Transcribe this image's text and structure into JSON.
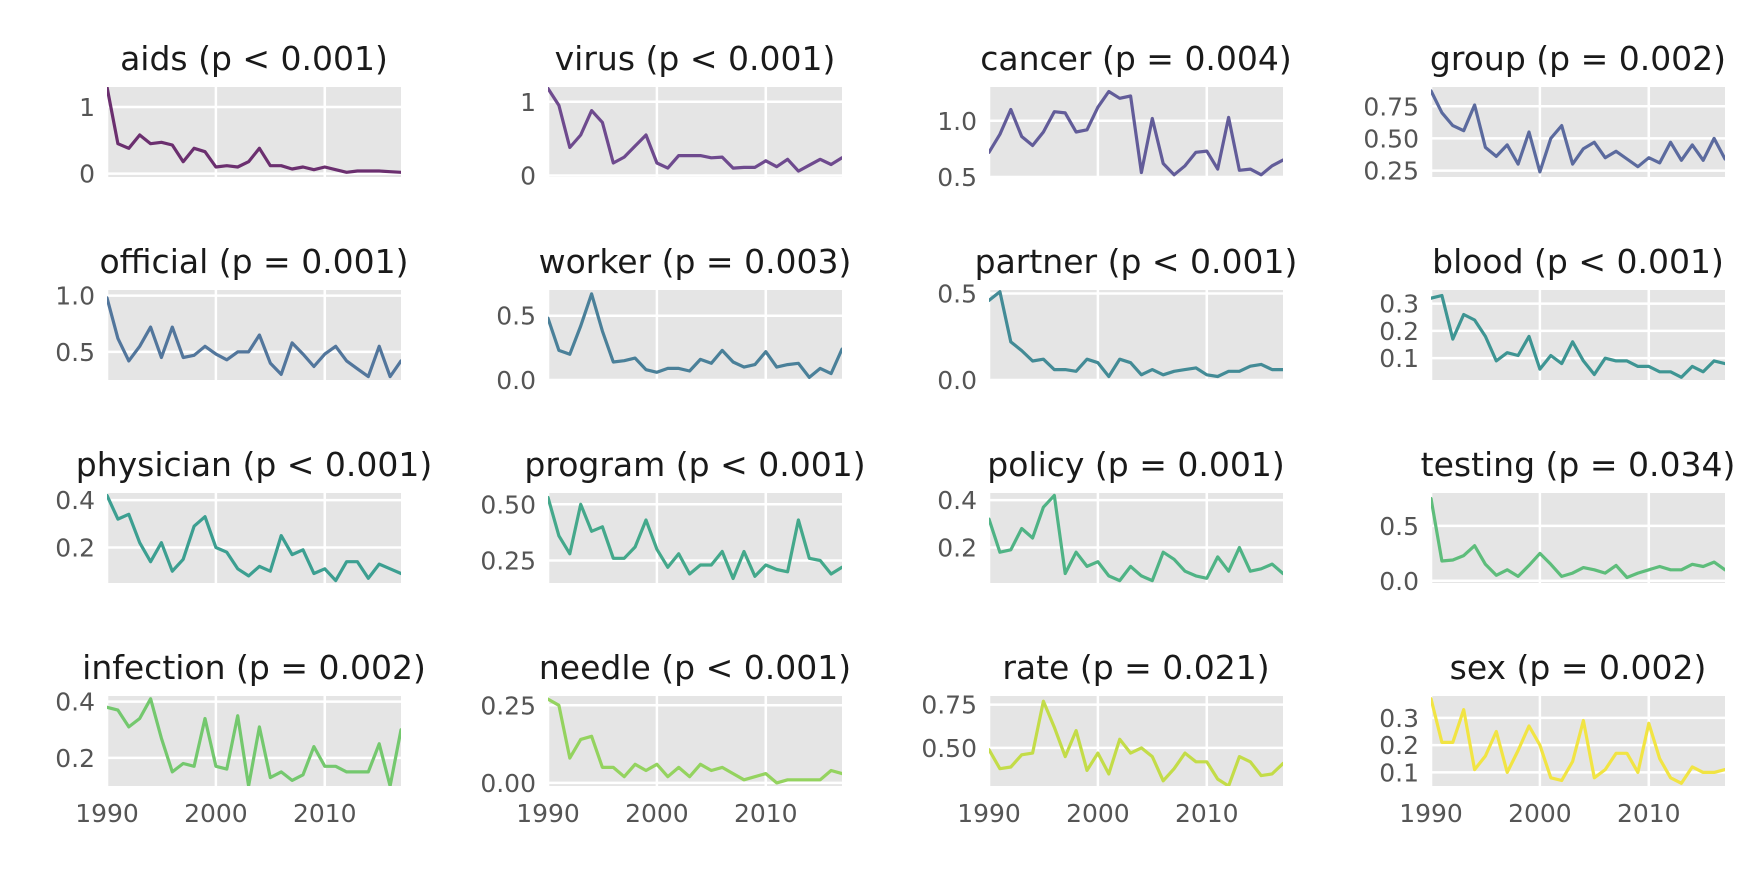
{
  "chart_data": [
    {
      "type": "line",
      "title": "aids (p < 0.001)",
      "color": "#6b2f6f",
      "xlim": [
        1990,
        2017
      ],
      "ylim": [
        -0.05,
        1.3
      ],
      "yticks": [
        0,
        1
      ],
      "yticklabels": [
        "0",
        "1"
      ],
      "grid": true,
      "x": [
        1990,
        1991,
        1992,
        1993,
        1994,
        1995,
        1996,
        1997,
        1998,
        1999,
        2000,
        2001,
        2002,
        2003,
        2004,
        2005,
        2006,
        2007,
        2008,
        2009,
        2010,
        2011,
        2012,
        2013,
        2014,
        2015,
        2016,
        2017
      ],
      "y": [
        1.3,
        0.45,
        0.38,
        0.58,
        0.45,
        0.47,
        0.43,
        0.18,
        0.38,
        0.33,
        0.1,
        0.12,
        0.1,
        0.18,
        0.38,
        0.12,
        0.12,
        0.07,
        0.1,
        0.06,
        0.1,
        0.06,
        0.02,
        0.04,
        0.04,
        0.04,
        0.03,
        0.02
      ]
    },
    {
      "type": "line",
      "title": "virus (p < 0.001)",
      "color": "#6e4a8e",
      "xlim": [
        1990,
        2017
      ],
      "ylim": [
        -0.02,
        1.2
      ],
      "yticks": [
        0,
        1
      ],
      "yticklabels": [
        "0",
        "1"
      ],
      "grid": true,
      "x": [
        1990,
        1991,
        1992,
        1993,
        1994,
        1995,
        1996,
        1997,
        1998,
        1999,
        2000,
        2001,
        2002,
        2003,
        2004,
        2005,
        2006,
        2007,
        2008,
        2009,
        2010,
        2011,
        2012,
        2013,
        2014,
        2015,
        2016,
        2017
      ],
      "y": [
        1.18,
        0.95,
        0.38,
        0.55,
        0.88,
        0.72,
        0.17,
        0.25,
        0.4,
        0.55,
        0.17,
        0.1,
        0.27,
        0.27,
        0.27,
        0.24,
        0.25,
        0.1,
        0.11,
        0.11,
        0.2,
        0.12,
        0.22,
        0.06,
        0.14,
        0.22,
        0.15,
        0.24
      ]
    },
    {
      "type": "line",
      "title": "cancer (p = 0.004)",
      "color": "#625c99",
      "xlim": [
        1990,
        2017
      ],
      "ylim": [
        0.5,
        1.3
      ],
      "yticks": [
        0.5,
        1.0
      ],
      "yticklabels": [
        "0.5",
        "1.0"
      ],
      "grid": true,
      "x": [
        1990,
        1991,
        1992,
        1993,
        1994,
        1995,
        1996,
        1997,
        1998,
        1999,
        2000,
        2001,
        2002,
        2003,
        2004,
        2005,
        2006,
        2007,
        2008,
        2009,
        2010,
        2011,
        2012,
        2013,
        2014,
        2015,
        2016,
        2017
      ],
      "y": [
        0.72,
        0.88,
        1.1,
        0.86,
        0.78,
        0.9,
        1.08,
        1.07,
        0.9,
        0.92,
        1.12,
        1.26,
        1.2,
        1.22,
        0.54,
        1.02,
        0.62,
        0.52,
        0.6,
        0.72,
        0.73,
        0.57,
        1.03,
        0.56,
        0.57,
        0.52,
        0.6,
        0.65
      ]
    },
    {
      "type": "line",
      "title": "group (p = 0.002)",
      "color": "#5b6a9e",
      "xlim": [
        1990,
        2017
      ],
      "ylim": [
        0.2,
        0.9
      ],
      "yticks": [
        0.25,
        0.5,
        0.75
      ],
      "yticklabels": [
        "0.25",
        "0.50",
        "0.75"
      ],
      "grid": true,
      "x": [
        1990,
        1991,
        1992,
        1993,
        1994,
        1995,
        1996,
        1997,
        1998,
        1999,
        2000,
        2001,
        2002,
        2003,
        2004,
        2005,
        2006,
        2007,
        2008,
        2009,
        2010,
        2011,
        2012,
        2013,
        2014,
        2015,
        2016,
        2017
      ],
      "y": [
        0.87,
        0.7,
        0.6,
        0.56,
        0.76,
        0.43,
        0.36,
        0.45,
        0.3,
        0.55,
        0.24,
        0.5,
        0.6,
        0.3,
        0.42,
        0.47,
        0.35,
        0.4,
        0.34,
        0.28,
        0.35,
        0.31,
        0.47,
        0.33,
        0.45,
        0.33,
        0.5,
        0.34
      ]
    },
    {
      "type": "line",
      "title": "official (p = 0.001)",
      "color": "#52769c",
      "xlim": [
        1990,
        2017
      ],
      "ylim": [
        0.25,
        1.05
      ],
      "yticks": [
        0.5,
        1.0
      ],
      "yticklabels": [
        "0.5",
        "1.0"
      ],
      "grid": true,
      "x": [
        1990,
        1991,
        1992,
        1993,
        1994,
        1995,
        1996,
        1997,
        1998,
        1999,
        2000,
        2001,
        2002,
        2003,
        2004,
        2005,
        2006,
        2007,
        2008,
        2009,
        2010,
        2011,
        2012,
        2013,
        2014,
        2015,
        2016,
        2017
      ],
      "y": [
        0.98,
        0.62,
        0.42,
        0.55,
        0.72,
        0.45,
        0.72,
        0.45,
        0.47,
        0.55,
        0.48,
        0.43,
        0.5,
        0.5,
        0.65,
        0.4,
        0.3,
        0.58,
        0.48,
        0.37,
        0.48,
        0.55,
        0.42,
        0.35,
        0.28,
        0.55,
        0.28,
        0.42
      ]
    },
    {
      "type": "line",
      "title": "worker (p = 0.003)",
      "color": "#4a8099",
      "xlim": [
        1990,
        2017
      ],
      "ylim": [
        0,
        0.7
      ],
      "yticks": [
        0,
        0.5
      ],
      "yticklabels": [
        "0.0",
        "0.5"
      ],
      "grid": true,
      "x": [
        1990,
        1991,
        1992,
        1993,
        1994,
        1995,
        1996,
        1997,
        1998,
        1999,
        2000,
        2001,
        2002,
        2003,
        2004,
        2005,
        2006,
        2007,
        2008,
        2009,
        2010,
        2011,
        2012,
        2013,
        2014,
        2015,
        2016,
        2017
      ],
      "y": [
        0.48,
        0.23,
        0.2,
        0.42,
        0.67,
        0.38,
        0.14,
        0.15,
        0.17,
        0.08,
        0.06,
        0.09,
        0.09,
        0.07,
        0.16,
        0.13,
        0.23,
        0.14,
        0.1,
        0.12,
        0.22,
        0.1,
        0.12,
        0.13,
        0.02,
        0.09,
        0.05,
        0.24
      ]
    },
    {
      "type": "line",
      "title": "partner (p < 0.001)",
      "color": "#438b96",
      "xlim": [
        1990,
        2017
      ],
      "ylim": [
        0,
        0.52
      ],
      "yticks": [
        0,
        0.5
      ],
      "yticklabels": [
        "0.0",
        "0.5"
      ],
      "grid": true,
      "x": [
        1990,
        1991,
        1992,
        1993,
        1994,
        1995,
        1996,
        1997,
        1998,
        1999,
        2000,
        2001,
        2002,
        2003,
        2004,
        2005,
        2006,
        2007,
        2008,
        2009,
        2010,
        2011,
        2012,
        2013,
        2014,
        2015,
        2016,
        2017
      ],
      "y": [
        0.46,
        0.51,
        0.22,
        0.17,
        0.11,
        0.12,
        0.06,
        0.06,
        0.05,
        0.12,
        0.1,
        0.02,
        0.12,
        0.1,
        0.03,
        0.06,
        0.03,
        0.05,
        0.06,
        0.07,
        0.03,
        0.02,
        0.05,
        0.05,
        0.08,
        0.09,
        0.06,
        0.06
      ]
    },
    {
      "type": "line",
      "title": "blood (p < 0.001)",
      "color": "#3e9593",
      "xlim": [
        1990,
        2017
      ],
      "ylim": [
        0.02,
        0.35
      ],
      "yticks": [
        0.1,
        0.2,
        0.3
      ],
      "yticklabels": [
        "0.1",
        "0.2",
        "0.3"
      ],
      "grid": true,
      "x": [
        1990,
        1991,
        1992,
        1993,
        1994,
        1995,
        1996,
        1997,
        1998,
        1999,
        2000,
        2001,
        2002,
        2003,
        2004,
        2005,
        2006,
        2007,
        2008,
        2009,
        2010,
        2011,
        2012,
        2013,
        2014,
        2015,
        2016,
        2017
      ],
      "y": [
        0.32,
        0.33,
        0.17,
        0.26,
        0.24,
        0.18,
        0.09,
        0.12,
        0.11,
        0.18,
        0.06,
        0.11,
        0.08,
        0.16,
        0.09,
        0.04,
        0.1,
        0.09,
        0.09,
        0.07,
        0.07,
        0.05,
        0.05,
        0.03,
        0.07,
        0.05,
        0.09,
        0.08
      ]
    },
    {
      "type": "line",
      "title": "physician (p < 0.001)",
      "color": "#3c9f91",
      "xlim": [
        1990,
        2017
      ],
      "ylim": [
        0.05,
        0.43
      ],
      "yticks": [
        0.2,
        0.4
      ],
      "yticklabels": [
        "0.2",
        "0.4"
      ],
      "grid": true,
      "x": [
        1990,
        1991,
        1992,
        1993,
        1994,
        1995,
        1996,
        1997,
        1998,
        1999,
        2000,
        2001,
        2002,
        2003,
        2004,
        2005,
        2006,
        2007,
        2008,
        2009,
        2010,
        2011,
        2012,
        2013,
        2014,
        2015,
        2016,
        2017
      ],
      "y": [
        0.42,
        0.32,
        0.34,
        0.22,
        0.14,
        0.22,
        0.1,
        0.15,
        0.29,
        0.33,
        0.2,
        0.18,
        0.11,
        0.08,
        0.12,
        0.1,
        0.25,
        0.17,
        0.19,
        0.09,
        0.11,
        0.06,
        0.14,
        0.14,
        0.07,
        0.13,
        0.11,
        0.09
      ]
    },
    {
      "type": "line",
      "title": "program (p < 0.001)",
      "color": "#44a88b",
      "xlim": [
        1990,
        2017
      ],
      "ylim": [
        0.15,
        0.55
      ],
      "yticks": [
        0.25,
        0.5
      ],
      "yticklabels": [
        "0.25",
        "0.50"
      ],
      "grid": true,
      "x": [
        1990,
        1991,
        1992,
        1993,
        1994,
        1995,
        1996,
        1997,
        1998,
        1999,
        2000,
        2001,
        2002,
        2003,
        2004,
        2005,
        2006,
        2007,
        2008,
        2009,
        2010,
        2011,
        2012,
        2013,
        2014,
        2015,
        2016,
        2017
      ],
      "y": [
        0.53,
        0.36,
        0.28,
        0.5,
        0.38,
        0.4,
        0.26,
        0.26,
        0.31,
        0.43,
        0.3,
        0.22,
        0.28,
        0.19,
        0.23,
        0.23,
        0.29,
        0.17,
        0.29,
        0.18,
        0.23,
        0.21,
        0.2,
        0.43,
        0.26,
        0.25,
        0.19,
        0.22
      ]
    },
    {
      "type": "line",
      "title": "policy (p = 0.001)",
      "color": "#4fb385",
      "xlim": [
        1990,
        2017
      ],
      "ylim": [
        0.05,
        0.43
      ],
      "yticks": [
        0.2,
        0.4
      ],
      "yticklabels": [
        "0.2",
        "0.4"
      ],
      "grid": true,
      "x": [
        1990,
        1991,
        1992,
        1993,
        1994,
        1995,
        1996,
        1997,
        1998,
        1999,
        2000,
        2001,
        2002,
        2003,
        2004,
        2005,
        2006,
        2007,
        2008,
        2009,
        2010,
        2011,
        2012,
        2013,
        2014,
        2015,
        2016,
        2017
      ],
      "y": [
        0.32,
        0.18,
        0.19,
        0.28,
        0.24,
        0.37,
        0.42,
        0.09,
        0.18,
        0.12,
        0.14,
        0.08,
        0.06,
        0.12,
        0.08,
        0.06,
        0.18,
        0.15,
        0.1,
        0.08,
        0.07,
        0.16,
        0.1,
        0.2,
        0.1,
        0.11,
        0.13,
        0.09
      ]
    },
    {
      "type": "line",
      "title": "testing (p = 0.034)",
      "color": "#5ebd7b",
      "xlim": [
        1990,
        2017
      ],
      "ylim": [
        -0.02,
        0.8
      ],
      "yticks": [
        0,
        0.5
      ],
      "yticklabels": [
        "0.0",
        "0.5"
      ],
      "grid": true,
      "x": [
        1990,
        1991,
        1992,
        1993,
        1994,
        1995,
        1996,
        1997,
        1998,
        1999,
        2000,
        2001,
        2002,
        2003,
        2004,
        2005,
        2006,
        2007,
        2008,
        2009,
        2010,
        2011,
        2012,
        2013,
        2014,
        2015,
        2016,
        2017
      ],
      "y": [
        0.75,
        0.18,
        0.19,
        0.23,
        0.32,
        0.15,
        0.05,
        0.1,
        0.04,
        0.14,
        0.25,
        0.15,
        0.04,
        0.07,
        0.12,
        0.1,
        0.07,
        0.14,
        0.03,
        0.07,
        0.1,
        0.13,
        0.1,
        0.1,
        0.15,
        0.13,
        0.17,
        0.1
      ]
    },
    {
      "type": "line",
      "title": "infection (p = 0.002)",
      "color": "#74c86e",
      "xlim": [
        1990,
        2017
      ],
      "ylim": [
        0.1,
        0.42
      ],
      "yticks": [
        0.2,
        0.4
      ],
      "yticklabels": [
        "0.2",
        "0.4"
      ],
      "grid": true,
      "x": [
        1990,
        1991,
        1992,
        1993,
        1994,
        1995,
        1996,
        1997,
        1998,
        1999,
        2000,
        2001,
        2002,
        2003,
        2004,
        2005,
        2006,
        2007,
        2008,
        2009,
        2010,
        2011,
        2012,
        2013,
        2014,
        2015,
        2016,
        2017
      ],
      "y": [
        0.38,
        0.37,
        0.31,
        0.34,
        0.41,
        0.27,
        0.15,
        0.18,
        0.17,
        0.34,
        0.17,
        0.16,
        0.35,
        0.1,
        0.31,
        0.13,
        0.15,
        0.12,
        0.14,
        0.24,
        0.17,
        0.17,
        0.15,
        0.15,
        0.15,
        0.25,
        0.1,
        0.3
      ]
    },
    {
      "type": "line",
      "title": "needle (p < 0.001)",
      "color": "#94d35f",
      "xlim": [
        1990,
        2017
      ],
      "ylim": [
        -0.01,
        0.28
      ],
      "yticks": [
        0,
        0.25
      ],
      "yticklabels": [
        "0.00",
        "0.25"
      ],
      "grid": true,
      "x": [
        1990,
        1991,
        1992,
        1993,
        1994,
        1995,
        1996,
        1997,
        1998,
        1999,
        2000,
        2001,
        2002,
        2003,
        2004,
        2005,
        2006,
        2007,
        2008,
        2009,
        2010,
        2011,
        2012,
        2013,
        2014,
        2015,
        2016,
        2017
      ],
      "y": [
        0.27,
        0.25,
        0.08,
        0.14,
        0.15,
        0.05,
        0.05,
        0.02,
        0.06,
        0.04,
        0.06,
        0.02,
        0.05,
        0.02,
        0.06,
        0.04,
        0.05,
        0.03,
        0.01,
        0.02,
        0.03,
        0.0,
        0.01,
        0.01,
        0.01,
        0.01,
        0.04,
        0.03
      ]
    },
    {
      "type": "line",
      "title": "rate (p = 0.021)",
      "color": "#c3dc48",
      "xlim": [
        1990,
        2017
      ],
      "ylim": [
        0.28,
        0.8
      ],
      "yticks": [
        0.5,
        0.75
      ],
      "yticklabels": [
        "0.50",
        "0.75"
      ],
      "grid": true,
      "x": [
        1990,
        1991,
        1992,
        1993,
        1994,
        1995,
        1996,
        1997,
        1998,
        1999,
        2000,
        2001,
        2002,
        2003,
        2004,
        2005,
        2006,
        2007,
        2008,
        2009,
        2010,
        2011,
        2012,
        2013,
        2014,
        2015,
        2016,
        2017
      ],
      "y": [
        0.49,
        0.38,
        0.39,
        0.46,
        0.47,
        0.77,
        0.62,
        0.45,
        0.6,
        0.37,
        0.47,
        0.35,
        0.55,
        0.47,
        0.5,
        0.45,
        0.31,
        0.38,
        0.47,
        0.42,
        0.42,
        0.32,
        0.28,
        0.45,
        0.42,
        0.34,
        0.35,
        0.41
      ]
    },
    {
      "type": "line",
      "title": "sex (p = 0.002)",
      "color": "#f1e443",
      "xlim": [
        1990,
        2017
      ],
      "ylim": [
        0.05,
        0.38
      ],
      "yticks": [
        0.1,
        0.2,
        0.3
      ],
      "yticklabels": [
        "0.1",
        "0.2",
        "0.3"
      ],
      "grid": true,
      "x": [
        1990,
        1991,
        1992,
        1993,
        1994,
        1995,
        1996,
        1997,
        1998,
        1999,
        2000,
        2001,
        2002,
        2003,
        2004,
        2005,
        2006,
        2007,
        2008,
        2009,
        2010,
        2011,
        2012,
        2013,
        2014,
        2015,
        2016,
        2017
      ],
      "y": [
        0.37,
        0.21,
        0.21,
        0.33,
        0.11,
        0.16,
        0.25,
        0.1,
        0.18,
        0.27,
        0.2,
        0.08,
        0.07,
        0.14,
        0.29,
        0.08,
        0.11,
        0.17,
        0.17,
        0.1,
        0.28,
        0.15,
        0.08,
        0.06,
        0.12,
        0.1,
        0.1,
        0.11
      ]
    }
  ],
  "xticks": [
    1990,
    2000,
    2010
  ],
  "xticklabels": [
    "1990",
    "2000",
    "2010"
  ]
}
